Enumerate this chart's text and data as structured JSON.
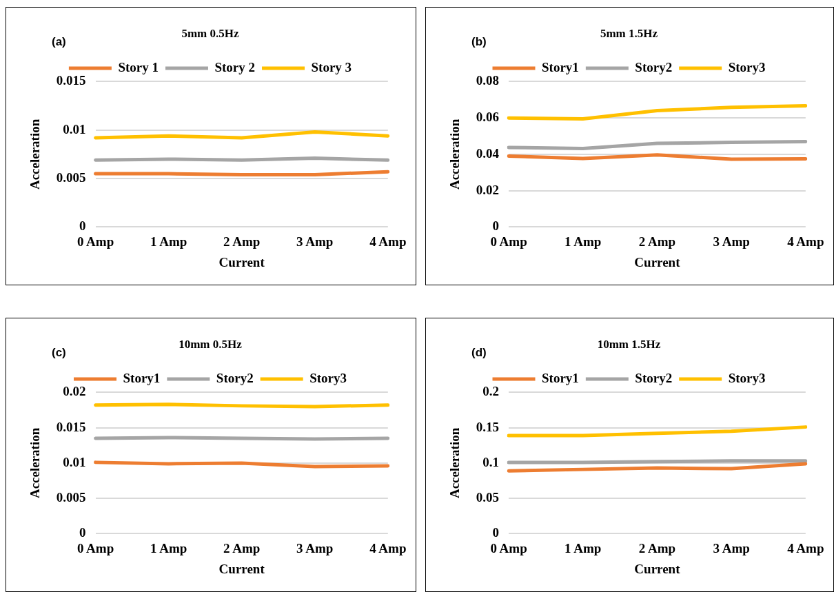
{
  "chart_data": [
    {
      "type": "line",
      "title": "5mm 0.5Hz",
      "annotations": [
        "(a)"
      ],
      "xlabel": "Current",
      "ylabel": "Acceleration",
      "categories": [
        "0 Amp",
        "1 Amp",
        "2 Amp",
        "3 Amp",
        "4 Amp"
      ],
      "ylim": [
        0,
        0.015
      ],
      "yticks": [
        0,
        0.005,
        0.01,
        0.015
      ],
      "grid": "y",
      "legend": "top",
      "marker": "none",
      "line_style": "solid",
      "series": [
        {
          "name": "Story 1",
          "color": "#ed7d31",
          "values": [
            0.0055,
            0.0055,
            0.0054,
            0.0054,
            0.0057
          ]
        },
        {
          "name": "Story 2",
          "color": "#a5a5a5",
          "values": [
            0.0069,
            0.007,
            0.0069,
            0.0071,
            0.0069
          ]
        },
        {
          "name": "Story 3",
          "color": "#ffc000",
          "values": [
            0.0092,
            0.0094,
            0.0092,
            0.0098,
            0.0094
          ]
        }
      ]
    },
    {
      "type": "line",
      "title": "5mm 1.5Hz",
      "annotations": [
        "(b)"
      ],
      "xlabel": "Current",
      "ylabel": "Acceleration",
      "categories": [
        "0 Amp",
        "1 Amp",
        "2 Amp",
        "3 Amp",
        "4 Amp"
      ],
      "ylim": [
        0,
        0.08
      ],
      "yticks": [
        0,
        0.02,
        0.04,
        0.06,
        0.08
      ],
      "grid": "y",
      "legend": "top",
      "marker": "none",
      "line_style": "solid",
      "series": [
        {
          "name": "Story1",
          "color": "#ed7d31",
          "values": [
            0.039,
            0.0377,
            0.0397,
            0.0373,
            0.0375
          ]
        },
        {
          "name": "Story2",
          "color": "#a5a5a5",
          "values": [
            0.0438,
            0.0432,
            0.046,
            0.0466,
            0.047
          ]
        },
        {
          "name": "Story3",
          "color": "#ffc000",
          "values": [
            0.06,
            0.0595,
            0.064,
            0.0658,
            0.0667
          ]
        }
      ]
    },
    {
      "type": "line",
      "title": "10mm 0.5Hz",
      "annotations": [
        "(c)"
      ],
      "xlabel": "Current",
      "ylabel": "Acceleration",
      "categories": [
        "0 Amp",
        "1 Amp",
        "2 Amp",
        "3 Amp",
        "4 Amp"
      ],
      "ylim": [
        0,
        0.02
      ],
      "yticks": [
        0,
        0.005,
        0.01,
        0.015,
        0.02
      ],
      "grid": "y",
      "legend": "top",
      "marker": "none",
      "line_style": "solid",
      "series": [
        {
          "name": "Story1",
          "color": "#ed7d31",
          "values": [
            0.0101,
            0.0099,
            0.01,
            0.0095,
            0.0096
          ]
        },
        {
          "name": "Story2",
          "color": "#a5a5a5",
          "values": [
            0.0135,
            0.0136,
            0.0135,
            0.0134,
            0.0135
          ]
        },
        {
          "name": "Story3",
          "color": "#ffc000",
          "values": [
            0.0182,
            0.0183,
            0.0181,
            0.018,
            0.0182
          ]
        }
      ]
    },
    {
      "type": "line",
      "title": "10mm 1.5Hz",
      "annotations": [
        "(d)"
      ],
      "xlabel": "Current",
      "ylabel": "Acceleration",
      "categories": [
        "0 Amp",
        "1 Amp",
        "2 Amp",
        "3 Amp",
        "4 Amp"
      ],
      "ylim": [
        0,
        0.2
      ],
      "yticks": [
        0,
        0.05,
        0.1,
        0.15,
        0.2
      ],
      "grid": "y",
      "legend": "top",
      "marker": "none",
      "line_style": "solid",
      "series": [
        {
          "name": "Story1",
          "color": "#ed7d31",
          "values": [
            0.089,
            0.091,
            0.093,
            0.092,
            0.099
          ]
        },
        {
          "name": "Story2",
          "color": "#a5a5a5",
          "values": [
            0.101,
            0.101,
            0.102,
            0.103,
            0.103
          ]
        },
        {
          "name": "Story3",
          "color": "#ffc000",
          "values": [
            0.139,
            0.139,
            0.142,
            0.145,
            0.151
          ]
        }
      ]
    }
  ]
}
